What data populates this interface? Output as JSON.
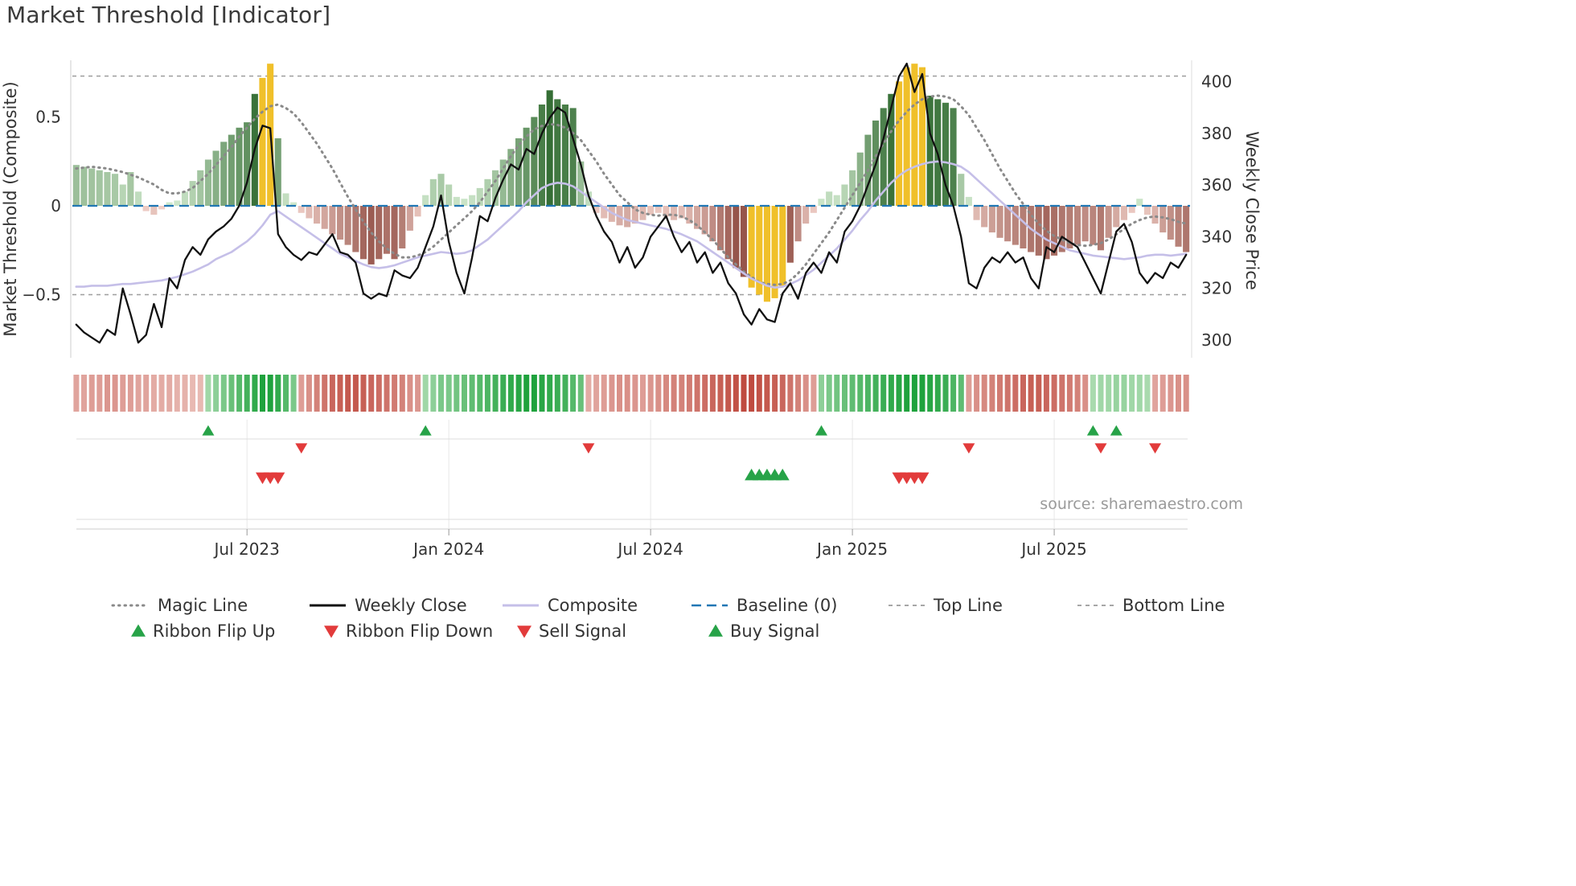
{
  "title": "Market Threshold [Indicator]",
  "source": "source: sharemaestro.com",
  "axes": {
    "left": {
      "title": "Market Threshold (Composite)",
      "ticks": [
        {
          "value": 0.5,
          "label": "0.5"
        },
        {
          "value": 0,
          "label": "0"
        },
        {
          "value": -0.5,
          "label": "−0.5"
        }
      ]
    },
    "right": {
      "title": "Weekly Close Price",
      "ticks": [
        400,
        380,
        360,
        340,
        320,
        300
      ]
    },
    "x": {
      "ticks": [
        {
          "week": 22,
          "label": "Jul 2023"
        },
        {
          "week": 48,
          "label": "Jan 2024"
        },
        {
          "week": 74,
          "label": "Jul 2024"
        },
        {
          "week": 100,
          "label": "Jan 2025"
        },
        {
          "week": 126,
          "label": "Jul 2025"
        }
      ]
    }
  },
  "chart_data": {
    "type": "bar+line",
    "n_points": 144,
    "x_unit": "week index (weekly data spanning the labeled months)",
    "left_ylim": [
      -0.85,
      0.82
    ],
    "right_ylim": [
      293,
      408
    ],
    "baseline": 0,
    "top_line": 0.73,
    "bottom_line": -0.5,
    "style": {
      "gold_pos": 0.7,
      "gold_neg": -0.45,
      "green_max": 0.65,
      "red_max": 0.35
    },
    "threshold_bars": [
      0.23,
      0.22,
      0.21,
      0.2,
      0.19,
      0.18,
      0.12,
      0.19,
      0.08,
      -0.03,
      -0.05,
      -0.02,
      0.02,
      0.03,
      0.08,
      0.14,
      0.2,
      0.26,
      0.31,
      0.36,
      0.4,
      0.44,
      0.47,
      0.63,
      0.72,
      0.8,
      0.38,
      0.07,
      0.02,
      -0.04,
      -0.07,
      -0.1,
      -0.13,
      -0.16,
      -0.19,
      -0.22,
      -0.26,
      -0.3,
      -0.33,
      -0.3,
      -0.27,
      -0.3,
      -0.24,
      -0.14,
      -0.06,
      0.06,
      0.15,
      0.18,
      0.12,
      0.05,
      0.04,
      0.06,
      0.1,
      0.15,
      0.2,
      0.26,
      0.32,
      0.38,
      0.44,
      0.5,
      0.57,
      0.65,
      0.6,
      0.57,
      0.55,
      0.25,
      0.08,
      -0.04,
      -0.07,
      -0.09,
      -0.11,
      -0.12,
      -0.1,
      -0.08,
      -0.05,
      -0.04,
      -0.06,
      -0.08,
      -0.07,
      -0.1,
      -0.13,
      -0.16,
      -0.2,
      -0.25,
      -0.3,
      -0.35,
      -0.4,
      -0.46,
      -0.5,
      -0.54,
      -0.52,
      -0.45,
      -0.32,
      -0.2,
      -0.1,
      -0.04,
      0.04,
      0.08,
      0.06,
      0.12,
      0.2,
      0.3,
      0.4,
      0.48,
      0.55,
      0.63,
      0.7,
      0.78,
      0.8,
      0.78,
      0.62,
      0.6,
      0.58,
      0.55,
      0.18,
      0.05,
      -0.08,
      -0.12,
      -0.15,
      -0.18,
      -0.2,
      -0.22,
      -0.24,
      -0.26,
      -0.28,
      -0.3,
      -0.28,
      -0.26,
      -0.24,
      -0.22,
      -0.2,
      -0.22,
      -0.25,
      -0.18,
      -0.12,
      -0.08,
      -0.04,
      0.04,
      -0.05,
      -0.1,
      -0.15,
      -0.19,
      -0.23,
      -0.26
    ],
    "weekly_close": [
      306,
      303,
      301,
      299,
      304,
      302,
      320,
      310,
      299,
      302,
      314,
      305,
      324,
      320,
      331,
      336,
      333,
      339,
      342,
      344,
      347,
      352,
      361,
      374,
      383,
      382,
      341,
      336,
      333,
      331,
      334,
      333,
      337,
      341,
      334,
      333,
      330,
      318,
      316,
      318,
      317,
      327,
      325,
      324,
      328,
      336,
      344,
      356,
      338,
      326,
      318,
      332,
      348,
      346,
      355,
      362,
      368,
      366,
      374,
      372,
      380,
      386,
      390,
      388,
      378,
      368,
      356,
      348,
      342,
      338,
      330,
      336,
      328,
      332,
      340,
      344,
      348,
      340,
      334,
      338,
      330,
      334,
      326,
      330,
      322,
      318,
      310,
      306,
      312,
      308,
      307,
      318,
      322,
      316,
      326,
      330,
      326,
      334,
      330,
      342,
      346,
      352,
      360,
      368,
      378,
      390,
      402,
      407,
      396,
      403,
      380,
      372,
      360,
      352,
      340,
      322,
      320,
      328,
      332,
      330,
      334,
      330,
      332,
      324,
      320,
      336,
      334,
      340,
      338,
      336,
      330,
      324,
      318,
      330,
      342,
      345,
      338,
      326,
      322,
      326,
      324,
      330,
      328,
      333
    ],
    "magic_line": [
      0.21,
      0.215,
      0.22,
      0.215,
      0.21,
      0.2,
      0.19,
      0.175,
      0.16,
      0.14,
      0.12,
      0.09,
      0.07,
      0.07,
      0.08,
      0.1,
      0.14,
      0.18,
      0.23,
      0.28,
      0.33,
      0.39,
      0.44,
      0.49,
      0.53,
      0.56,
      0.57,
      0.55,
      0.52,
      0.47,
      0.41,
      0.35,
      0.28,
      0.21,
      0.13,
      0.05,
      -0.02,
      -0.09,
      -0.15,
      -0.2,
      -0.24,
      -0.27,
      -0.29,
      -0.29,
      -0.28,
      -0.26,
      -0.23,
      -0.19,
      -0.15,
      -0.11,
      -0.07,
      -0.03,
      0.02,
      0.08,
      0.14,
      0.21,
      0.28,
      0.34,
      0.39,
      0.43,
      0.45,
      0.46,
      0.455,
      0.44,
      0.41,
      0.37,
      0.31,
      0.25,
      0.18,
      0.12,
      0.06,
      0.02,
      -0.02,
      -0.04,
      -0.05,
      -0.055,
      -0.05,
      -0.05,
      -0.06,
      -0.08,
      -0.11,
      -0.15,
      -0.19,
      -0.24,
      -0.29,
      -0.33,
      -0.37,
      -0.4,
      -0.43,
      -0.44,
      -0.445,
      -0.44,
      -0.42,
      -0.38,
      -0.33,
      -0.27,
      -0.21,
      -0.15,
      -0.08,
      -0.01,
      0.06,
      0.13,
      0.2,
      0.28,
      0.35,
      0.42,
      0.48,
      0.53,
      0.57,
      0.6,
      0.615,
      0.62,
      0.615,
      0.6,
      0.56,
      0.51,
      0.44,
      0.37,
      0.29,
      0.21,
      0.14,
      0.07,
      0.01,
      -0.05,
      -0.1,
      -0.14,
      -0.17,
      -0.19,
      -0.21,
      -0.22,
      -0.225,
      -0.22,
      -0.21,
      -0.19,
      -0.16,
      -0.13,
      -0.1,
      -0.08,
      -0.065,
      -0.06,
      -0.065,
      -0.075,
      -0.09,
      -0.1
    ],
    "composite": [
      -0.455,
      -0.455,
      -0.45,
      -0.45,
      -0.45,
      -0.445,
      -0.44,
      -0.44,
      -0.435,
      -0.43,
      -0.425,
      -0.42,
      -0.41,
      -0.4,
      -0.385,
      -0.37,
      -0.35,
      -0.33,
      -0.3,
      -0.28,
      -0.26,
      -0.23,
      -0.2,
      -0.16,
      -0.11,
      -0.05,
      -0.03,
      -0.06,
      -0.09,
      -0.12,
      -0.15,
      -0.18,
      -0.21,
      -0.24,
      -0.27,
      -0.29,
      -0.31,
      -0.33,
      -0.345,
      -0.35,
      -0.345,
      -0.335,
      -0.32,
      -0.305,
      -0.29,
      -0.28,
      -0.27,
      -0.26,
      -0.265,
      -0.27,
      -0.265,
      -0.25,
      -0.22,
      -0.19,
      -0.15,
      -0.11,
      -0.07,
      -0.03,
      0.02,
      0.06,
      0.1,
      0.12,
      0.13,
      0.125,
      0.11,
      0.08,
      0.05,
      0.02,
      -0.01,
      -0.04,
      -0.06,
      -0.08,
      -0.09,
      -0.1,
      -0.11,
      -0.12,
      -0.13,
      -0.145,
      -0.16,
      -0.18,
      -0.2,
      -0.23,
      -0.26,
      -0.29,
      -0.32,
      -0.35,
      -0.38,
      -0.41,
      -0.43,
      -0.45,
      -0.46,
      -0.455,
      -0.44,
      -0.42,
      -0.39,
      -0.36,
      -0.32,
      -0.28,
      -0.24,
      -0.19,
      -0.14,
      -0.08,
      -0.03,
      0.03,
      0.08,
      0.13,
      0.17,
      0.2,
      0.22,
      0.235,
      0.245,
      0.25,
      0.245,
      0.235,
      0.22,
      0.19,
      0.15,
      0.11,
      0.07,
      0.03,
      -0.01,
      -0.05,
      -0.09,
      -0.13,
      -0.16,
      -0.19,
      -0.21,
      -0.23,
      -0.25,
      -0.26,
      -0.27,
      -0.28,
      -0.285,
      -0.29,
      -0.295,
      -0.3,
      -0.295,
      -0.29,
      -0.28,
      -0.275,
      -0.275,
      -0.28,
      -0.275,
      -0.27
    ],
    "ribbon": [
      -0.35,
      -0.35,
      -0.4,
      -0.4,
      -0.45,
      -0.45,
      -0.4,
      -0.4,
      -0.35,
      -0.35,
      -0.3,
      -0.3,
      -0.3,
      -0.25,
      -0.25,
      -0.2,
      -0.2,
      0.3,
      0.4,
      0.5,
      0.6,
      0.7,
      0.8,
      0.9,
      1.0,
      1.0,
      0.9,
      0.7,
      0.5,
      -0.4,
      -0.5,
      -0.6,
      -0.7,
      -0.8,
      -0.85,
      -0.9,
      -0.9,
      -0.85,
      -0.8,
      -0.75,
      -0.7,
      -0.65,
      -0.6,
      -0.5,
      -0.45,
      0.3,
      0.4,
      0.5,
      0.5,
      0.55,
      0.6,
      0.65,
      0.7,
      0.75,
      0.8,
      0.85,
      0.9,
      0.95,
      1.0,
      1.0,
      0.95,
      0.9,
      0.85,
      0.8,
      0.7,
      0.6,
      -0.3,
      -0.35,
      -0.4,
      -0.45,
      -0.5,
      -0.5,
      -0.45,
      -0.4,
      -0.45,
      -0.5,
      -0.55,
      -0.6,
      -0.6,
      -0.65,
      -0.7,
      -0.75,
      -0.8,
      -0.85,
      -0.9,
      -0.95,
      -1.0,
      -1.0,
      -0.95,
      -0.9,
      -0.85,
      -0.8,
      -0.7,
      -0.6,
      -0.5,
      -0.4,
      0.4,
      0.5,
      0.55,
      0.6,
      0.65,
      0.7,
      0.75,
      0.8,
      0.85,
      0.9,
      0.95,
      1.0,
      1.0,
      1.0,
      0.95,
      0.9,
      0.85,
      0.75,
      0.65,
      -0.4,
      -0.5,
      -0.55,
      -0.6,
      -0.65,
      -0.7,
      -0.75,
      -0.8,
      -0.85,
      -0.85,
      -0.8,
      -0.75,
      -0.7,
      -0.65,
      -0.6,
      -0.5,
      0.25,
      0.3,
      0.3,
      0.35,
      0.35,
      0.3,
      0.3,
      0.25,
      -0.35,
      -0.4,
      -0.45,
      -0.5,
      -0.5
    ],
    "signals": {
      "ribbon_flip_up_weeks": [
        17,
        45,
        96,
        131,
        134
      ],
      "ribbon_flip_down_weeks": [
        29,
        66,
        115,
        132,
        139
      ],
      "sell_signal_weeks": [
        24,
        25,
        26,
        106,
        107,
        108,
        109
      ],
      "buy_signal_weeks": [
        87,
        88,
        89,
        90,
        91
      ]
    }
  },
  "legend": {
    "rows": [
      [
        {
          "label": "Magic Line",
          "marker": "dotted-line",
          "color": "#8a8a8a"
        },
        {
          "label": "Weekly Close",
          "marker": "solid-line",
          "color": "#111111"
        },
        {
          "label": "Composite",
          "marker": "solid-line",
          "color": "#c5bfe8"
        },
        {
          "label": "Baseline (0)",
          "marker": "dashed-line",
          "color": "#2077b4"
        },
        {
          "label": "Top Line",
          "marker": "dashed-line-thin",
          "color": "#999999"
        },
        {
          "label": "Bottom Line",
          "marker": "dashed-line-thin",
          "color": "#999999"
        }
      ],
      [
        {
          "label": "Ribbon Flip Up",
          "marker": "triangle-up",
          "color": "#27a348"
        },
        {
          "label": "Ribbon Flip Down",
          "marker": "triangle-down",
          "color": "#e23b3b"
        },
        {
          "label": "Sell Signal",
          "marker": "triangle-down",
          "color": "#e23b3b"
        },
        {
          "label": "Buy Signal",
          "marker": "triangle-up",
          "color": "#27a348"
        }
      ]
    ]
  },
  "colors": {
    "gold": "#f0c02a",
    "bar_green_light": "#d4ecd1",
    "bar_green_dark": "#356e35",
    "bar_red_light": "#f5d6cf",
    "bar_red_dark": "#96554b",
    "ribbon_green_light": "#d7edd4",
    "ribbon_green_dark": "#1fa23d",
    "ribbon_red_light": "#f2d4cf",
    "ribbon_red_dark": "#bf4b40",
    "magic": "#8a8a8a",
    "close": "#111111",
    "composite": "#c5bfe8",
    "baseline": "#2077b4",
    "guide": "#9e9e9e",
    "signal_green": "#27a348",
    "signal_red": "#e23b3b",
    "text": "#333333",
    "muted": "#9a9a9a"
  }
}
